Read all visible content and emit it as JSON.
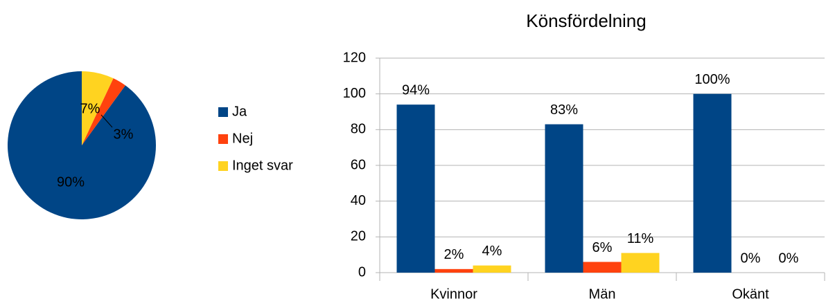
{
  "chart_data": [
    {
      "type": "pie",
      "categories": [
        "Ja",
        "Nej",
        "Inget svar"
      ],
      "values": [
        90,
        3,
        7
      ],
      "value_labels": [
        "90%",
        "3%",
        "7%"
      ],
      "colors": [
        "#004586",
        "#ff420e",
        "#ffd320"
      ],
      "legend": "right"
    },
    {
      "type": "bar",
      "title": "Könsfördelning",
      "categories": [
        "Kvinnor",
        "Män",
        "Okänt"
      ],
      "series": [
        {
          "color": "#004586",
          "values": [
            94,
            83,
            100
          ],
          "value_labels": [
            "94%",
            "83%",
            "100%"
          ]
        },
        {
          "color": "#ff420e",
          "values": [
            2,
            6,
            0
          ],
          "value_labels": [
            "2%",
            "6%",
            "0%"
          ]
        },
        {
          "color": "#ffd320",
          "values": [
            4,
            11,
            0
          ],
          "value_labels": [
            "4%",
            "11%",
            "0%"
          ]
        }
      ],
      "ylim": [
        0,
        120
      ],
      "yticks": [
        0,
        20,
        40,
        60,
        80,
        100,
        120
      ],
      "grid": true
    }
  ]
}
